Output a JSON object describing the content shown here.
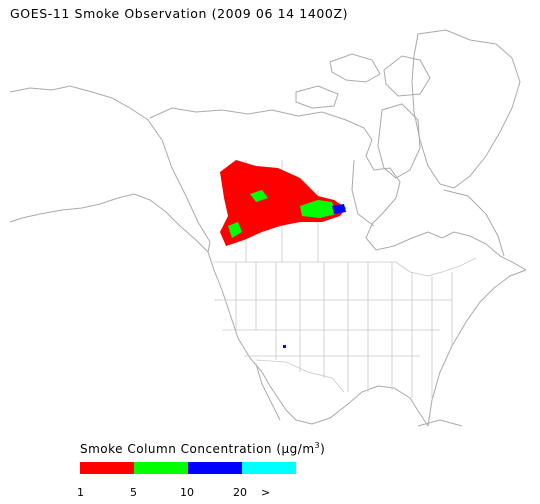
{
  "title": "GOES-11 Smoke Observation (2009 06 14  1400Z)",
  "legend": {
    "title_prefix": "Smoke Column Concentration (",
    "title_unit_mu": "μ",
    "title_unit_rest": "g/m",
    "title_sup": "3",
    "title_suffix": ")",
    "colors": [
      "#ff0000",
      "#00ff00",
      "#0000ff",
      "#00ffff"
    ],
    "ticks": [
      "1",
      "5",
      "10",
      "20",
      ">"
    ]
  },
  "colors": {
    "coastline": "#aaaaaa",
    "borders": "#c8c8c8",
    "smoke_low": "#ff0000",
    "smoke_mid": "#00ff00",
    "smoke_high": "#0000ff",
    "smoke_max": "#00ffff"
  }
}
